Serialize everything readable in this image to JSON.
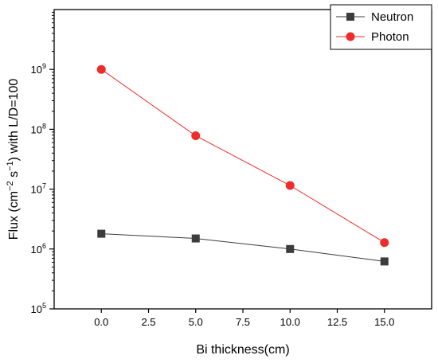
{
  "chart_data": {
    "type": "line",
    "xlabel": "Bi thickness(cm)",
    "ylabel": {
      "parts": [
        {
          "text": "Flux (cm",
          "sup": false
        },
        {
          "text": "−2",
          "sup": true
        },
        {
          "text": " s",
          "sup": false
        },
        {
          "text": "−1",
          "sup": true
        },
        {
          "text": ") with L/D=100",
          "sup": false
        }
      ]
    },
    "x": [
      0.0,
      5.0,
      10.0,
      15.0
    ],
    "xlim": [
      -2.5,
      17.5
    ],
    "x_ticks": [
      0.0,
      2.5,
      5.0,
      7.5,
      10.0,
      12.5,
      15.0
    ],
    "x_tick_labels": [
      "0.0",
      "2.5",
      "5.0",
      "7.5",
      "10.0",
      "12.5",
      "15.0"
    ],
    "y_scale": "log",
    "ylim": [
      100000,
      10000000000
    ],
    "y_ticks": [
      {
        "base": "10",
        "exp": "5",
        "value": 100000
      },
      {
        "base": "10",
        "exp": "6",
        "value": 1000000
      },
      {
        "base": "10",
        "exp": "7",
        "value": 10000000
      },
      {
        "base": "10",
        "exp": "8",
        "value": 100000000
      },
      {
        "base": "10",
        "exp": "9",
        "value": 1000000000
      }
    ],
    "grid": false,
    "legend_position": "top-right",
    "series": [
      {
        "name": "Neutron",
        "values": [
          1800000,
          1500000,
          1000000,
          620000
        ],
        "color": "#3c3c3c",
        "marker": "square"
      },
      {
        "name": "Photon",
        "values": [
          1000000000,
          78000000,
          11500000,
          1280000
        ],
        "color": "#ee2c2c",
        "marker": "circle"
      }
    ]
  }
}
